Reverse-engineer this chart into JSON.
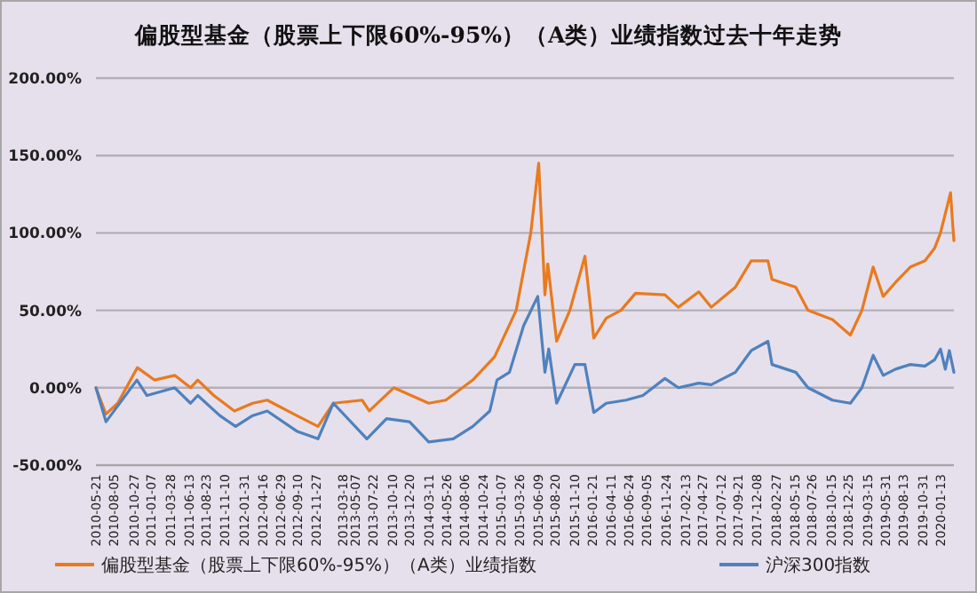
{
  "chart_data": {
    "type": "line",
    "title": "偏股型基金（股票上下限60%-95%）（A类）业绩指数过去十年走势",
    "xlim": [
      "2010-05-21",
      "2020-03-10"
    ],
    "xticks": [
      "2010-05-21",
      "2010-08-05",
      "2010-10-27",
      "2011-01-07",
      "2011-03-28",
      "2011-06-13",
      "2011-08-23",
      "2011-11-10",
      "2012-01-31",
      "2012-04-16",
      "2012-06-29",
      "2012-09-10",
      "2012-11-27",
      "2013-03-18",
      "2013-05-07",
      "2013-07-22",
      "2013-10-10",
      "2013-12-20",
      "2014-03-11",
      "2014-05-26",
      "2014-08-06",
      "2014-10-24",
      "2015-01-07",
      "2015-03-26",
      "2015-06-09",
      "2015-08-20",
      "2015-11-10",
      "2016-01-21",
      "2016-04-11",
      "2016-06-24",
      "2016-09-05",
      "2016-11-24",
      "2017-02-13",
      "2017-04-27",
      "2017-07-12",
      "2017-09-21",
      "2017-12-08",
      "2018-02-27",
      "2018-05-15",
      "2018-07-26",
      "2018-10-15",
      "2018-12-25",
      "2019-03-15",
      "2019-05-31",
      "2019-08-13",
      "2019-10-31",
      "2020-01-13"
    ],
    "ylim": [
      -50,
      200
    ],
    "yticks": [
      {
        "value": -50,
        "label": "-50.00%"
      },
      {
        "value": 0,
        "label": "0.00%"
      },
      {
        "value": 50,
        "label": "50.00%"
      },
      {
        "value": 100,
        "label": "100.00%"
      },
      {
        "value": 150,
        "label": "150.00%"
      },
      {
        "value": 200,
        "label": "200.00%"
      }
    ],
    "grid": "y",
    "legend": "bottom",
    "marker": "none",
    "line_style": "solid",
    "series": [
      {
        "name": "偏股型基金（股票上下限60%-95%）（A类）业绩指数",
        "color": "#e97a1e",
        "x": [
          "2010-05-21",
          "2010-07-02",
          "2010-08-20",
          "2010-11-10",
          "2011-01-20",
          "2011-04-15",
          "2011-06-20",
          "2011-07-20",
          "2011-09-25",
          "2011-12-20",
          "2012-03-05",
          "2012-05-05",
          "2012-09-05",
          "2012-12-03",
          "2013-02-05",
          "2013-06-05",
          "2013-07-05",
          "2013-10-15",
          "2014-03-10",
          "2014-05-20",
          "2014-09-10",
          "2014-12-10",
          "2015-03-10",
          "2015-05-10",
          "2015-06-12",
          "2015-07-08",
          "2015-07-20",
          "2015-08-26",
          "2015-10-20",
          "2015-12-22",
          "2016-01-28",
          "2016-03-20",
          "2016-05-20",
          "2016-07-20",
          "2016-11-20",
          "2017-01-15",
          "2017-04-10",
          "2017-06-01",
          "2017-09-10",
          "2017-11-15",
          "2018-01-24",
          "2018-02-10",
          "2018-05-20",
          "2018-07-10",
          "2018-10-20",
          "2019-01-03",
          "2019-02-20",
          "2019-04-08",
          "2019-05-20",
          "2019-07-10",
          "2019-09-10",
          "2019-11-10",
          "2019-12-20",
          "2020-01-14",
          "2020-02-25",
          "2020-03-03",
          "2020-03-10"
        ],
        "values": [
          0,
          -17,
          -10,
          13,
          5,
          8,
          0,
          5,
          -5,
          -15,
          -10,
          -8,
          -18,
          -25,
          -10,
          -8,
          -15,
          0,
          -10,
          -8,
          5,
          20,
          50,
          100,
          145,
          60,
          80,
          30,
          50,
          85,
          32,
          45,
          50,
          61,
          60,
          52,
          62,
          52,
          65,
          82,
          82,
          70,
          65,
          50,
          44,
          34,
          50,
          78,
          59,
          68,
          78,
          82,
          90,
          100,
          126,
          110,
          95
        ]
      },
      {
        "name": "沪深300指数",
        "color": "#4f81bd",
        "x": [
          "2010-05-21",
          "2010-07-02",
          "2010-11-08",
          "2010-12-20",
          "2011-04-15",
          "2011-06-20",
          "2011-07-20",
          "2011-10-20",
          "2011-12-25",
          "2012-03-05",
          "2012-05-05",
          "2012-09-05",
          "2012-12-03",
          "2013-02-05",
          "2013-06-25",
          "2013-09-15",
          "2013-12-20",
          "2014-03-10",
          "2014-06-20",
          "2014-09-10",
          "2014-11-20",
          "2014-12-20",
          "2015-02-10",
          "2015-04-10",
          "2015-06-08",
          "2015-07-08",
          "2015-07-24",
          "2015-08-26",
          "2015-11-10",
          "2015-12-22",
          "2016-01-28",
          "2016-03-20",
          "2016-06-10",
          "2016-08-20",
          "2016-11-20",
          "2017-01-15",
          "2017-04-10",
          "2017-06-01",
          "2017-09-10",
          "2017-11-15",
          "2018-01-24",
          "2018-02-10",
          "2018-05-20",
          "2018-07-10",
          "2018-10-20",
          "2019-01-03",
          "2019-02-20",
          "2019-04-08",
          "2019-05-20",
          "2019-07-10",
          "2019-09-10",
          "2019-11-10",
          "2019-12-20",
          "2020-01-14",
          "2020-02-03",
          "2020-02-20",
          "2020-03-10"
        ],
        "values": [
          0,
          -22,
          5,
          -5,
          0,
          -10,
          -5,
          -18,
          -25,
          -18,
          -15,
          -28,
          -33,
          -10,
          -33,
          -20,
          -22,
          -35,
          -33,
          -25,
          -15,
          5,
          10,
          40,
          59,
          10,
          25,
          -10,
          15,
          15,
          -16,
          -10,
          -8,
          -5,
          6,
          0,
          3,
          2,
          10,
          24,
          30,
          15,
          10,
          0,
          -8,
          -10,
          0,
          21,
          8,
          12,
          15,
          14,
          18,
          25,
          12,
          24,
          10
        ]
      }
    ]
  }
}
